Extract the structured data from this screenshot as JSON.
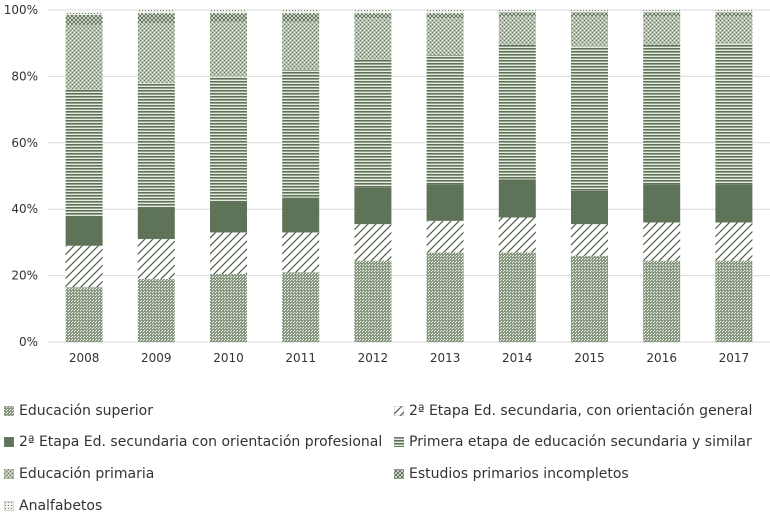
{
  "chart_data": {
    "type": "bar",
    "stacked": true,
    "title": "",
    "xlabel": "",
    "ylabel": "",
    "ylim": [
      0,
      100
    ],
    "y_ticks": [
      "0%",
      "20%",
      "40%",
      "60%",
      "80%",
      "100%"
    ],
    "grid": true,
    "legend_position": "bottom",
    "categories": [
      "2008",
      "2009",
      "2010",
      "2011",
      "2012",
      "2013",
      "2014",
      "2015",
      "2016",
      "2017"
    ],
    "series": [
      {
        "name": "Educación superior",
        "color": "#6f8168",
        "values": [
          16.5,
          19,
          20.5,
          21,
          24.5,
          27,
          27,
          26,
          24.5,
          24.5
        ]
      },
      {
        "name": "2ª Etapa Ed. secundaria, con orientación general",
        "color": "#ffffff",
        "values": [
          12.5,
          12,
          12.5,
          12,
          11,
          9.5,
          10.5,
          9.5,
          11.5,
          11.5
        ]
      },
      {
        "name": "2ª Etapa Ed. secundaria con orientación profesional",
        "color": "#5e7257",
        "values": [
          9,
          9.5,
          9.5,
          10.5,
          11,
          11,
          11.5,
          10,
          11.5,
          11.5
        ]
      },
      {
        "name": "Primera etapa de educación secundaria y similar",
        "color": "#6a7e63",
        "values": [
          38,
          37.5,
          37.5,
          38.5,
          38.5,
          39,
          40.5,
          43.5,
          42,
          42.5
        ]
      },
      {
        "name": "Educación primaria",
        "color": "#8a9a82",
        "values": [
          19.5,
          18,
          16.5,
          14.5,
          12.5,
          11,
          8.5,
          9,
          8.5,
          8
        ]
      },
      {
        "name": "Estudios primarios incompletos",
        "color": "#7a8c72",
        "values": [
          3,
          3,
          2.5,
          2.5,
          1.5,
          1.5,
          1.3,
          1.3,
          1.3,
          1.3
        ]
      },
      {
        "name": "Analfabetos",
        "color": "#9aa892",
        "values": [
          1,
          1,
          1,
          1,
          1,
          1,
          0.7,
          0.7,
          0.7,
          0.7
        ]
      }
    ]
  }
}
